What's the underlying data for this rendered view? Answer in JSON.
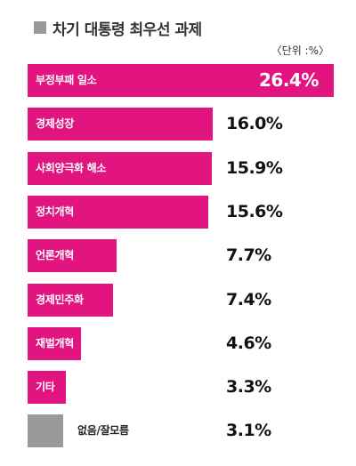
{
  "title": "차기 대통령 최우선 과제",
  "unit_label": "〈단위 :%〉",
  "colors": {
    "accent": "#e2147f",
    "neutral": "#9a9a9a",
    "title_square": "#999999"
  },
  "chart_data": {
    "type": "bar",
    "orientation": "horizontal",
    "title": "차기 대통령 최우선 과제",
    "unit": "〈단위 :%〉",
    "categories": [
      "부정부패 일소",
      "경제성장",
      "사회양극화 해소",
      "정치개혁",
      "언론개혁",
      "경제민주화",
      "재벌개혁",
      "기타",
      "없음/잘모름"
    ],
    "values": [
      26.4,
      16.0,
      15.9,
      15.6,
      7.7,
      7.4,
      4.6,
      3.3,
      3.1
    ],
    "value_labels": [
      "26.4%",
      "16.0%",
      "15.9%",
      "15.6%",
      "7.7%",
      "7.4%",
      "4.6%",
      "3.3%",
      "3.1%"
    ],
    "xlim": [
      0,
      26.4
    ]
  }
}
